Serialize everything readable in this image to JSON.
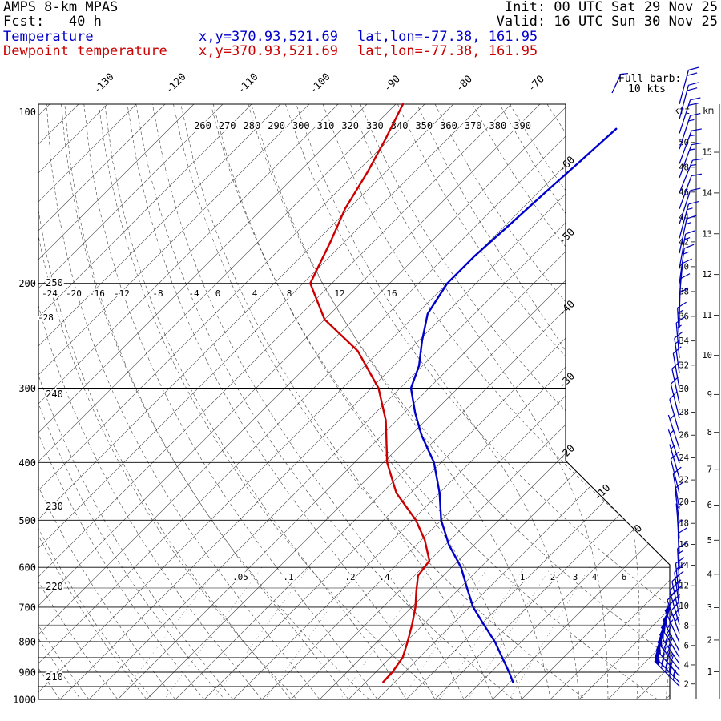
{
  "header": {
    "model": "AMPS 8-km MPAS",
    "fcst_line": "Fcst:   40 h",
    "init_line": "Init: 00 UTC Sat 29 Nov 25",
    "valid_line": "Valid: 16 UTC Sun 30 Nov 25"
  },
  "legend": {
    "temperature": {
      "label": "Temperature",
      "xy": "x,y=370.93,521.69",
      "latlon": "lat,lon=-77.38, 161.95",
      "color": "#0000cc"
    },
    "dewpoint": {
      "label": "Dewpoint temperature",
      "xy": "x,y=370.93,521.69",
      "latlon": "lat,lon=-77.38, 161.95",
      "color": "#cc0000"
    }
  },
  "barb_legend": {
    "line1": "Full barb:",
    "line2": "10 kts"
  },
  "axes": {
    "kft_label": "kft",
    "km_label": "km"
  },
  "chart_data": {
    "type": "skewt_log_p_sounding",
    "title": "AMPS 8-km MPAS 40h forecast sounding",
    "pressure_axis_hpa": [
      100,
      200,
      300,
      400,
      500,
      600,
      700,
      800,
      900,
      1000
    ],
    "top_isotherm_labels_c": [
      -130,
      -120,
      -110,
      -100,
      -90,
      -80,
      -70
    ],
    "right_isotherm_labels_c": [
      -60,
      -50,
      -40,
      -30,
      -20,
      -10,
      0
    ],
    "theta_top_labels_k": [
      260,
      270,
      280,
      290,
      300,
      310,
      320,
      330,
      340,
      350,
      360,
      370,
      380,
      390
    ],
    "left_theta_labels_k": [
      250,
      240,
      230,
      220,
      210
    ],
    "moist_adiabat_labels_c": [
      -28,
      -24,
      -20,
      -16,
      -12,
      -8,
      -4,
      0,
      4,
      8,
      12,
      16
    ],
    "mixing_ratio_labels_gkg": [
      ".05",
      ".1",
      ".2",
      ".4",
      "1",
      "2",
      "3",
      "4",
      "6"
    ],
    "kft_ticks": [
      2,
      4,
      6,
      8,
      10,
      12,
      14,
      16,
      18,
      20,
      22,
      24,
      26,
      28,
      30,
      32,
      34,
      36,
      38,
      40,
      42,
      44,
      46,
      48,
      50
    ],
    "km_ticks": [
      1,
      2,
      3,
      4,
      5,
      6,
      7,
      8,
      9,
      10,
      11,
      12,
      13,
      14,
      15
    ],
    "full_barb_kts": 10,
    "temperature_profile_p_t": [
      [
        110,
        -58
      ],
      [
        125,
        -58.5
      ],
      [
        140,
        -59
      ],
      [
        160,
        -59.5
      ],
      [
        180,
        -60
      ],
      [
        200,
        -60
      ],
      [
        225,
        -58.5
      ],
      [
        250,
        -55.5
      ],
      [
        275,
        -52.5
      ],
      [
        300,
        -50.5
      ],
      [
        330,
        -46.5
      ],
      [
        360,
        -42.5
      ],
      [
        400,
        -37
      ],
      [
        450,
        -32
      ],
      [
        500,
        -28
      ],
      [
        550,
        -23.5
      ],
      [
        600,
        -18.7
      ],
      [
        650,
        -15
      ],
      [
        700,
        -11.5
      ],
      [
        750,
        -7.5
      ],
      [
        800,
        -3.7
      ],
      [
        850,
        -0.5
      ],
      [
        900,
        2.5
      ],
      [
        935,
        4.4
      ]
    ],
    "dewpoint_profile_p_t": [
      [
        100,
        -91
      ],
      [
        115,
        -88.5
      ],
      [
        130,
        -86.5
      ],
      [
        150,
        -84.5
      ],
      [
        170,
        -82
      ],
      [
        200,
        -79
      ],
      [
        230,
        -72
      ],
      [
        260,
        -63
      ],
      [
        300,
        -55
      ],
      [
        340,
        -49.5
      ],
      [
        400,
        -43.5
      ],
      [
        450,
        -38
      ],
      [
        500,
        -31.5
      ],
      [
        540,
        -27.5
      ],
      [
        585,
        -24
      ],
      [
        620,
        -23.5
      ],
      [
        660,
        -21.5
      ],
      [
        700,
        -19.5
      ],
      [
        750,
        -17.5
      ],
      [
        800,
        -15.8
      ],
      [
        850,
        -14.3
      ],
      [
        900,
        -13.7
      ],
      [
        935,
        -13.6
      ]
    ],
    "wind_barbs_p_spd_dir": [
      [
        100,
        20,
        15
      ],
      [
        106,
        20,
        15
      ],
      [
        112,
        20,
        18
      ],
      [
        119,
        15,
        18
      ],
      [
        126,
        15,
        20
      ],
      [
        133,
        15,
        20
      ],
      [
        141,
        15,
        22
      ],
      [
        150,
        10,
        20
      ],
      [
        159,
        10,
        18
      ],
      [
        168,
        15,
        15
      ],
      [
        178,
        15,
        12
      ],
      [
        189,
        15,
        10
      ],
      [
        200,
        15,
        8
      ],
      [
        212,
        10,
        5
      ],
      [
        225,
        10,
        2
      ],
      [
        238,
        10,
        0
      ],
      [
        252,
        15,
        357
      ],
      [
        267,
        15,
        355
      ],
      [
        283,
        15,
        352
      ],
      [
        300,
        10,
        350
      ],
      [
        318,
        10,
        348
      ],
      [
        337,
        10,
        346
      ],
      [
        357,
        10,
        344
      ],
      [
        379,
        5,
        342
      ],
      [
        401,
        5,
        342
      ],
      [
        425,
        5,
        344
      ],
      [
        451,
        10,
        346
      ],
      [
        478,
        10,
        350
      ],
      [
        506,
        10,
        353
      ],
      [
        537,
        5,
        355
      ],
      [
        569,
        5,
        357
      ],
      [
        603,
        10,
        358
      ],
      [
        639,
        15,
        357
      ],
      [
        677,
        20,
        354
      ],
      [
        700,
        25,
        352
      ],
      [
        724,
        30,
        348
      ],
      [
        749,
        35,
        344
      ],
      [
        775,
        45,
        340
      ],
      [
        802,
        55,
        336
      ],
      [
        830,
        60,
        332
      ],
      [
        850,
        65,
        329
      ],
      [
        871,
        70,
        326
      ],
      [
        892,
        75,
        322
      ],
      [
        914,
        80,
        319
      ],
      [
        936,
        85,
        316
      ],
      [
        950,
        88,
        315
      ]
    ]
  }
}
